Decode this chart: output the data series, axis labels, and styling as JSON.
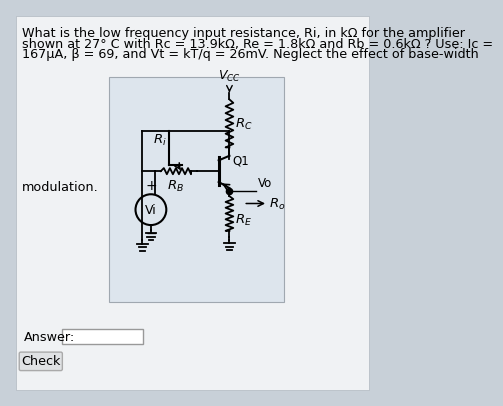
{
  "title_lines": [
    "What is the low frequency input resistance, Ri, in kΩ for the amplifier",
    "shown at 27° C with Rc = 13.9kΩ, Re = 1.8kΩ and Rb = 0.6kΩ ? Use: Ic =",
    "167μA, β = 69, and Vt = kT/q = 26mV. Neglect the effect of base-width"
  ],
  "modulation_text": "modulation.",
  "answer_label": "Answer:",
  "check_label": "Check",
  "font_size_text": 9.2,
  "outer_bg": "#c8d0d8",
  "inner_bg": "#f0f2f4",
  "circuit_bg": "#dde5ed"
}
